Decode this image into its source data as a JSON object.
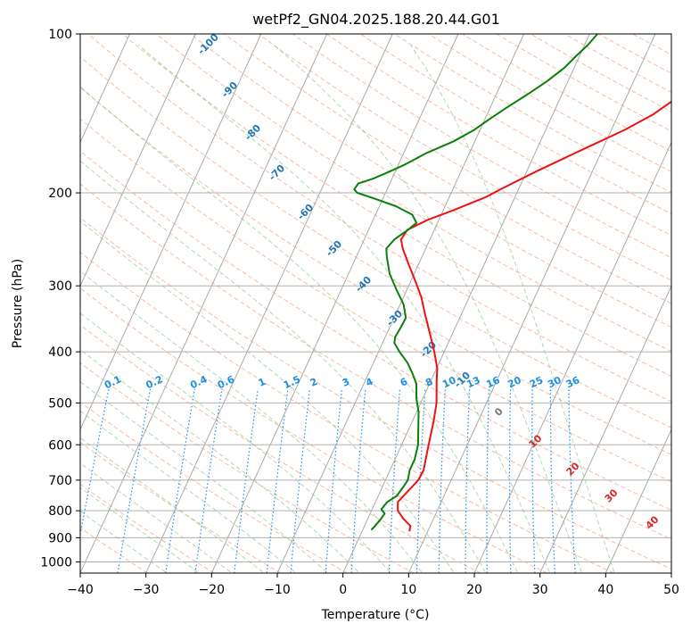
{
  "chart_data": {
    "type": "line",
    "title": "wetPf2_GN04.2025.188.20.44.G01",
    "xlabel": "Temperature (°C)",
    "ylabel": "Pressure (hPa)",
    "xlim": [
      -40,
      50
    ],
    "ylim": [
      1050,
      100
    ],
    "y_scale": "log",
    "grid": true,
    "x_ticks": [
      "−40",
      "−30",
      "−20",
      "−10",
      "0",
      "10",
      "20",
      "30",
      "40",
      "50"
    ],
    "x_tick_values": [
      -40,
      -30,
      -20,
      -10,
      0,
      10,
      20,
      30,
      40,
      50
    ],
    "y_ticks": [
      "100",
      "200",
      "300",
      "400",
      "500",
      "600",
      "700",
      "800",
      "900",
      "1000"
    ],
    "y_tick_values": [
      100,
      200,
      300,
      400,
      500,
      600,
      700,
      800,
      900,
      1000
    ],
    "series": [
      {
        "color": "#ee1111",
        "role": "temperature",
        "points": [
          [
            7.2,
            875
          ],
          [
            7.0,
            855
          ],
          [
            5.5,
            830
          ],
          [
            4.0,
            800
          ],
          [
            3.4,
            770
          ],
          [
            5.0,
            700
          ],
          [
            5.1,
            670
          ],
          [
            4.1,
            600
          ],
          [
            3.2,
            540
          ],
          [
            2.4,
            500
          ],
          [
            0.9,
            455
          ],
          [
            0.1,
            430
          ],
          [
            -1.5,
            400
          ],
          [
            -3.4,
            370
          ],
          [
            -5.5,
            340
          ],
          [
            -7.3,
            315
          ],
          [
            -9.2,
            295
          ],
          [
            -11.3,
            275
          ],
          [
            -13.5,
            255
          ],
          [
            -14.4,
            245
          ],
          [
            -14.1,
            235
          ],
          [
            -11.7,
            225
          ],
          [
            -8.2,
            215
          ],
          [
            -4.5,
            204
          ],
          [
            -2.5,
            196
          ],
          [
            1.5,
            182
          ],
          [
            6.5,
            167
          ],
          [
            12.0,
            152
          ],
          [
            15.3,
            142
          ],
          [
            17.0,
            135
          ],
          [
            18.8,
            128
          ],
          [
            20.4,
            123
          ],
          [
            22.3,
            117
          ],
          [
            24.0,
            112
          ],
          [
            26.6,
            106
          ],
          [
            29.1,
            100
          ]
        ]
      },
      {
        "color": "#0a7f0a",
        "role": "dewpoint",
        "points": [
          [
            1.3,
            870
          ],
          [
            1.6,
            855
          ],
          [
            2.0,
            830
          ],
          [
            2.2,
            810
          ],
          [
            1.4,
            795
          ],
          [
            1.8,
            770
          ],
          [
            2.8,
            750
          ],
          [
            3.2,
            720
          ],
          [
            3.4,
            700
          ],
          [
            3.0,
            670
          ],
          [
            3.0,
            640
          ],
          [
            2.5,
            600
          ],
          [
            1.3,
            555
          ],
          [
            0.3,
            520
          ],
          [
            -1.0,
            490
          ],
          [
            -2.0,
            460
          ],
          [
            -3.3,
            440
          ],
          [
            -4.8,
            420
          ],
          [
            -6.8,
            400
          ],
          [
            -8.2,
            385
          ],
          [
            -8.5,
            375
          ],
          [
            -8.3,
            360
          ],
          [
            -8.2,
            345
          ],
          [
            -9.5,
            325
          ],
          [
            -11.6,
            305
          ],
          [
            -13.7,
            285
          ],
          [
            -15.3,
            265
          ],
          [
            -16.0,
            255
          ],
          [
            -15.4,
            245
          ],
          [
            -14.0,
            235
          ],
          [
            -13.2,
            228
          ],
          [
            -14.4,
            220
          ],
          [
            -17.5,
            212
          ],
          [
            -21.3,
            205
          ],
          [
            -24.3,
            200
          ],
          [
            -25.0,
            197
          ],
          [
            -24.8,
            192
          ],
          [
            -22.9,
            188
          ],
          [
            -21.1,
            183
          ],
          [
            -19.1,
            177
          ],
          [
            -16.5,
            168
          ],
          [
            -13.3,
            160
          ],
          [
            -10.9,
            152
          ],
          [
            -9.3,
            145
          ],
          [
            -7.5,
            138
          ],
          [
            -5.2,
            130
          ],
          [
            -3.2,
            123
          ],
          [
            -1.5,
            116
          ],
          [
            -0.5,
            110
          ],
          [
            0.5,
            105
          ],
          [
            1.2,
            100
          ]
        ]
      }
    ],
    "dry_adiabat_labels": [
      "-100",
      "-90",
      "-80",
      "-70",
      "-60",
      "-50",
      "-40",
      "-30",
      "-20",
      "-10",
      "0",
      "10",
      "20",
      "30",
      "40"
    ],
    "mixing_ratio_labels": [
      "0.1",
      "0.2",
      "0.4",
      "0.6",
      "1",
      "1.5",
      "2",
      "3",
      "4",
      "6",
      "8",
      "10",
      "13",
      "16",
      "20",
      "25",
      "30",
      "36"
    ]
  }
}
